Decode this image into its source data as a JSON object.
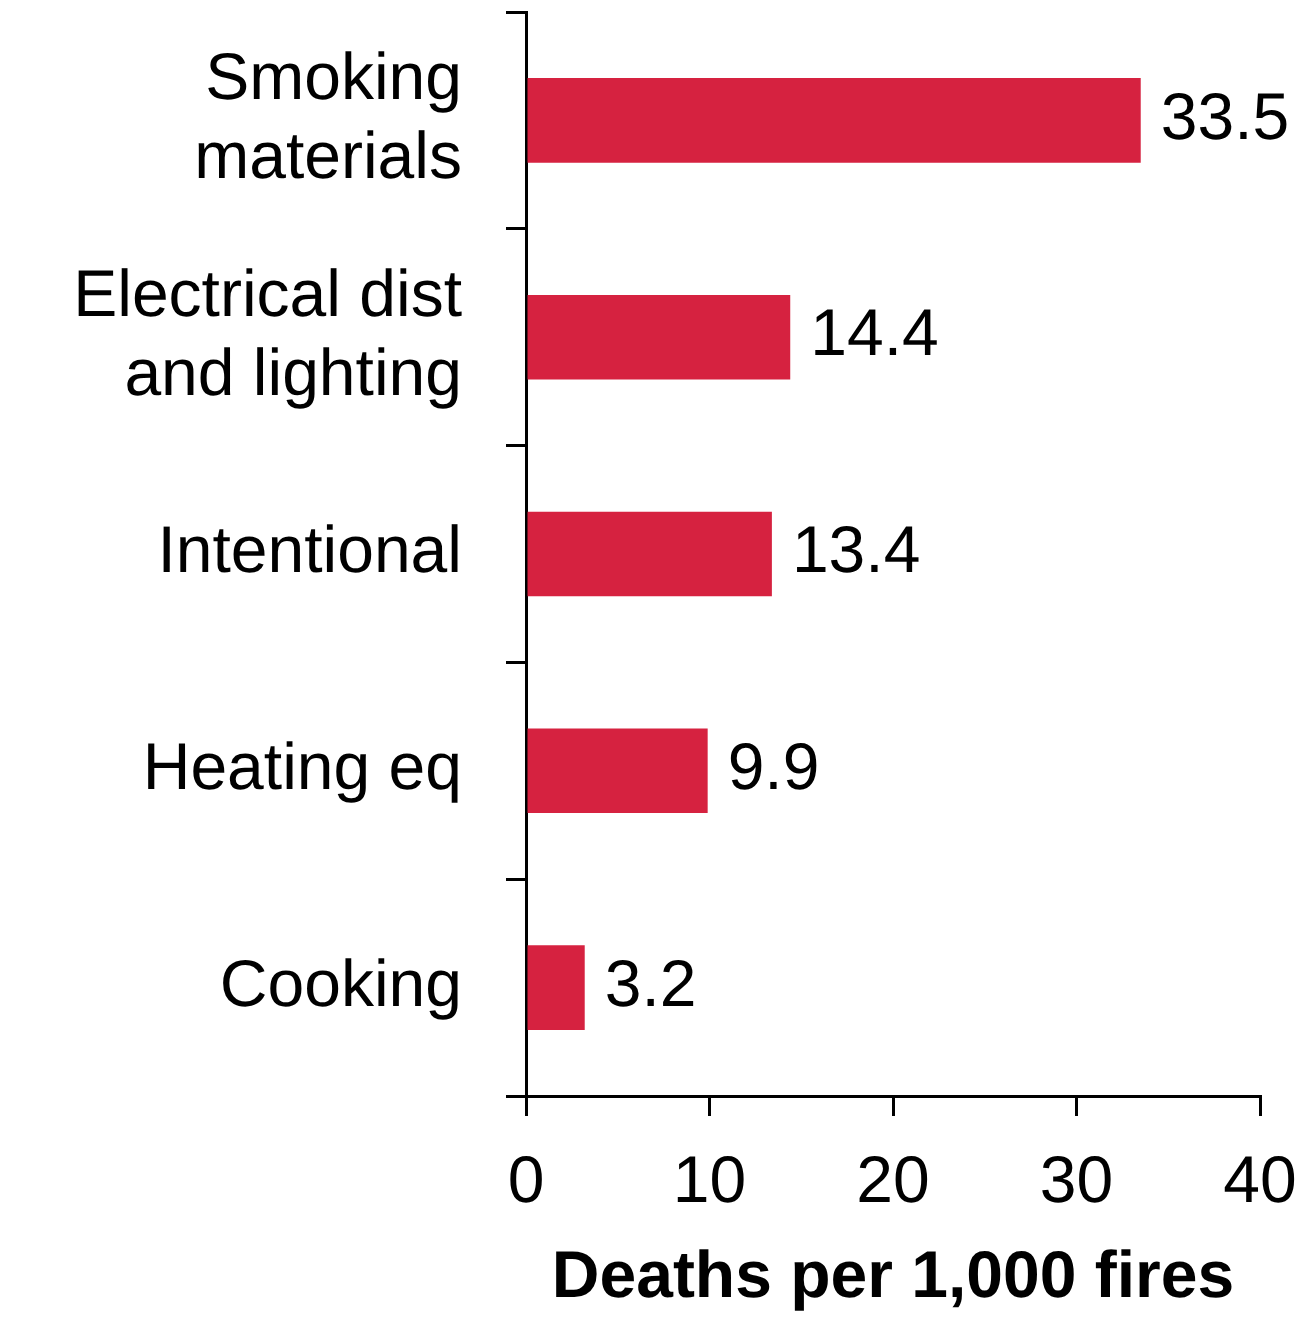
{
  "chart_data": {
    "type": "bar",
    "orientation": "horizontal",
    "categories": [
      "Smoking materials",
      "Electrical dist and lighting",
      "Intentional",
      "Heating eq",
      "Cooking"
    ],
    "values": [
      33.5,
      14.4,
      13.4,
      9.9,
      3.2
    ],
    "color": "#d62240",
    "xlabel": "Deaths per 1,000 fires",
    "xlim": [
      0,
      40
    ],
    "xticks": [
      0,
      10,
      20,
      30,
      40
    ],
    "grid": false,
    "legend": false,
    "data_labels": true
  }
}
